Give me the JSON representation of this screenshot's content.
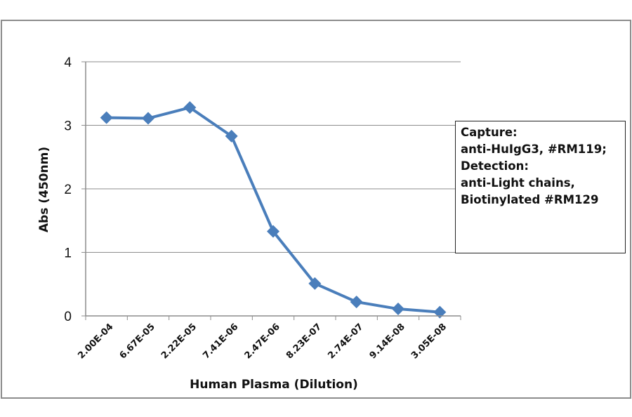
{
  "chart_data": {
    "type": "line",
    "title": "",
    "xlabel": "Human Plasma (Dilution)",
    "ylabel": "Abs (450nm)",
    "categories": [
      "2.00E-04",
      "6.67E-05",
      "2.22E-05",
      "7.41E-06",
      "2.47E-06",
      "8.23E-07",
      "2.74E-07",
      "9.14E-08",
      "3.05E-08"
    ],
    "series": [
      {
        "name": "Abs (450nm)",
        "values": [
          3.12,
          3.11,
          3.28,
          2.83,
          1.33,
          0.51,
          0.22,
          0.11,
          0.06
        ],
        "color": "#4a7ebb",
        "marker": "diamond"
      }
    ],
    "yticks": [
      "0",
      "1",
      "2",
      "3",
      "4"
    ],
    "ylim": [
      0,
      4
    ],
    "grid": "horizontal",
    "legend_position": "right",
    "annotation": [
      "Capture:",
      "anti-HuIgG3, #RM119;",
      "Detection:",
      "anti-Light chains,",
      "Biotinylated #RM129"
    ]
  }
}
